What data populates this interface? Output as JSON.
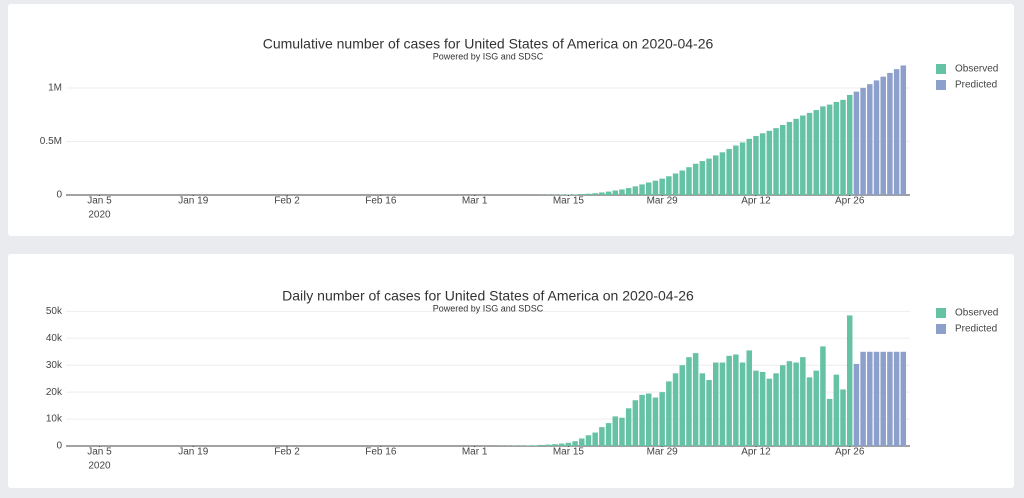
{
  "chart_data": [
    {
      "type": "bar",
      "title": "Cumulative number of cases for United States of America on 2020-04-26",
      "subtitle": "Powered by ISG and SDSC",
      "x": [
        "2020-03-01",
        "2020-03-02",
        "2020-03-03",
        "2020-03-04",
        "2020-03-05",
        "2020-03-06",
        "2020-03-07",
        "2020-03-08",
        "2020-03-09",
        "2020-03-10",
        "2020-03-11",
        "2020-03-12",
        "2020-03-13",
        "2020-03-14",
        "2020-03-15",
        "2020-03-16",
        "2020-03-17",
        "2020-03-18",
        "2020-03-19",
        "2020-03-20",
        "2020-03-21",
        "2020-03-22",
        "2020-03-23",
        "2020-03-24",
        "2020-03-25",
        "2020-03-26",
        "2020-03-27",
        "2020-03-28",
        "2020-03-29",
        "2020-03-30",
        "2020-03-31",
        "2020-04-01",
        "2020-04-02",
        "2020-04-03",
        "2020-04-04",
        "2020-04-05",
        "2020-04-06",
        "2020-04-07",
        "2020-04-08",
        "2020-04-09",
        "2020-04-10",
        "2020-04-11",
        "2020-04-12",
        "2020-04-13",
        "2020-04-14",
        "2020-04-15",
        "2020-04-16",
        "2020-04-17",
        "2020-04-18",
        "2020-04-19",
        "2020-04-20",
        "2020-04-21",
        "2020-04-22",
        "2020-04-23",
        "2020-04-24",
        "2020-04-25",
        "2020-04-26",
        "2020-04-27",
        "2020-04-28",
        "2020-04-29",
        "2020-04-30",
        "2020-05-01",
        "2020-05-02",
        "2020-05-03",
        "2020-05-04"
      ],
      "series": [
        {
          "name": "Observed",
          "color": "#66c2a5",
          "values": [
            10,
            30,
            50,
            80,
            130,
            190,
            290,
            390,
            540,
            790,
            1190,
            1690,
            2390,
            3290,
            4490,
            6000,
            9000,
            12000,
            17000,
            24000,
            32000,
            42000,
            52000,
            65000,
            81000,
            99000,
            117000,
            134000,
            153000,
            175000,
            201000,
            229000,
            260000,
            292000,
            317000,
            340000,
            370000,
            399000,
            430000,
            462000,
            491000,
            525000,
            551000,
            577000,
            600000,
            625000,
            654000,
            683000,
            712000,
            743000,
            767000,
            794000,
            828000,
            845000,
            870000,
            889000,
            935000,
            null,
            null,
            null,
            null,
            null,
            null,
            null,
            null
          ]
        },
        {
          "name": "Predicted",
          "color": "#8da0cb",
          "values": [
            null,
            null,
            null,
            null,
            null,
            null,
            null,
            null,
            null,
            null,
            null,
            null,
            null,
            null,
            null,
            null,
            null,
            null,
            null,
            null,
            null,
            null,
            null,
            null,
            null,
            null,
            null,
            null,
            null,
            null,
            null,
            null,
            null,
            null,
            null,
            null,
            null,
            null,
            null,
            null,
            null,
            null,
            null,
            null,
            null,
            null,
            null,
            null,
            null,
            null,
            null,
            null,
            null,
            null,
            null,
            null,
            null,
            966000,
            1001000,
            1036000,
            1071000,
            1106000,
            1141000,
            1176000,
            1211000
          ]
        }
      ],
      "xlim": [
        "2019-12-31",
        "2020-05-05"
      ],
      "xticks": [
        {
          "value": "2020-01-05",
          "label": "Jan 5"
        },
        {
          "value": "2020-01-19",
          "label": "Jan 19"
        },
        {
          "value": "2020-02-02",
          "label": "Feb 2"
        },
        {
          "value": "2020-02-16",
          "label": "Feb 16"
        },
        {
          "value": "2020-03-01",
          "label": "Mar 1"
        },
        {
          "value": "2020-03-15",
          "label": "Mar 15"
        },
        {
          "value": "2020-03-29",
          "label": "Mar 29"
        },
        {
          "value": "2020-04-12",
          "label": "Apr 12"
        },
        {
          "value": "2020-04-26",
          "label": "Apr 26"
        }
      ],
      "xtick_year": "2020",
      "ylim": [
        0,
        1243000
      ],
      "yticks": [
        0,
        {
          "value": 500000,
          "label": "0.5M"
        },
        {
          "value": 1000000,
          "label": "1M"
        }
      ],
      "grid": true,
      "legend": "right"
    },
    {
      "type": "bar",
      "title": "Daily number of cases for United States of America on 2020-04-26",
      "subtitle": "Powered by ISG and SDSC",
      "x": [
        "2020-03-01",
        "2020-03-02",
        "2020-03-03",
        "2020-03-04",
        "2020-03-05",
        "2020-03-06",
        "2020-03-07",
        "2020-03-08",
        "2020-03-09",
        "2020-03-10",
        "2020-03-11",
        "2020-03-12",
        "2020-03-13",
        "2020-03-14",
        "2020-03-15",
        "2020-03-16",
        "2020-03-17",
        "2020-03-18",
        "2020-03-19",
        "2020-03-20",
        "2020-03-21",
        "2020-03-22",
        "2020-03-23",
        "2020-03-24",
        "2020-03-25",
        "2020-03-26",
        "2020-03-27",
        "2020-03-28",
        "2020-03-29",
        "2020-03-30",
        "2020-03-31",
        "2020-04-01",
        "2020-04-02",
        "2020-04-03",
        "2020-04-04",
        "2020-04-05",
        "2020-04-06",
        "2020-04-07",
        "2020-04-08",
        "2020-04-09",
        "2020-04-10",
        "2020-04-11",
        "2020-04-12",
        "2020-04-13",
        "2020-04-14",
        "2020-04-15",
        "2020-04-16",
        "2020-04-17",
        "2020-04-18",
        "2020-04-19",
        "2020-04-20",
        "2020-04-21",
        "2020-04-22",
        "2020-04-23",
        "2020-04-24",
        "2020-04-25",
        "2020-04-26",
        "2020-04-27",
        "2020-04-28",
        "2020-04-29",
        "2020-04-30",
        "2020-05-01",
        "2020-05-02",
        "2020-05-03",
        "2020-05-04"
      ],
      "series": [
        {
          "name": "Observed",
          "color": "#66c2a5",
          "values": [
            10,
            20,
            20,
            30,
            50,
            60,
            100,
            100,
            150,
            250,
            400,
            500,
            700,
            900,
            1200,
            1800,
            2800,
            4000,
            5000,
            7000,
            8500,
            11000,
            10500,
            14000,
            17000,
            19000,
            19500,
            18000,
            20000,
            24000,
            27000,
            30000,
            33000,
            34500,
            27000,
            24500,
            31000,
            31000,
            33500,
            34000,
            31000,
            35500,
            28000,
            27500,
            25000,
            27000,
            30000,
            31500,
            31000,
            33000,
            25500,
            28000,
            37000,
            17500,
            26500,
            21000,
            48500,
            null,
            null,
            null,
            null,
            null,
            null,
            null,
            null
          ]
        },
        {
          "name": "Predicted",
          "color": "#8da0cb",
          "values": [
            null,
            null,
            null,
            null,
            null,
            null,
            null,
            null,
            null,
            null,
            null,
            null,
            null,
            null,
            null,
            null,
            null,
            null,
            null,
            null,
            null,
            null,
            null,
            null,
            null,
            null,
            null,
            null,
            null,
            null,
            null,
            null,
            null,
            null,
            null,
            null,
            null,
            null,
            null,
            null,
            null,
            null,
            null,
            null,
            null,
            null,
            null,
            null,
            null,
            null,
            null,
            null,
            null,
            null,
            null,
            null,
            null,
            30500,
            35000,
            35000,
            35000,
            35000,
            35000,
            35000,
            35000
          ]
        }
      ],
      "xlim": [
        "2019-12-31",
        "2020-05-05"
      ],
      "xticks": [
        {
          "value": "2020-01-05",
          "label": "Jan 5"
        },
        {
          "value": "2020-01-19",
          "label": "Jan 19"
        },
        {
          "value": "2020-02-02",
          "label": "Feb 2"
        },
        {
          "value": "2020-02-16",
          "label": "Feb 16"
        },
        {
          "value": "2020-03-01",
          "label": "Mar 1"
        },
        {
          "value": "2020-03-15",
          "label": "Mar 15"
        },
        {
          "value": "2020-03-29",
          "label": "Mar 29"
        },
        {
          "value": "2020-04-12",
          "label": "Apr 12"
        },
        {
          "value": "2020-04-26",
          "label": "Apr 26"
        }
      ],
      "xtick_year": "2020",
      "ylim": [
        0,
        52000
      ],
      "yticks": [
        0,
        {
          "value": 10000,
          "label": "10k"
        },
        {
          "value": 20000,
          "label": "20k"
        },
        {
          "value": 30000,
          "label": "30k"
        },
        {
          "value": 40000,
          "label": "40k"
        },
        {
          "value": 50000,
          "label": "50k"
        }
      ],
      "grid": true,
      "legend": "right"
    }
  ]
}
